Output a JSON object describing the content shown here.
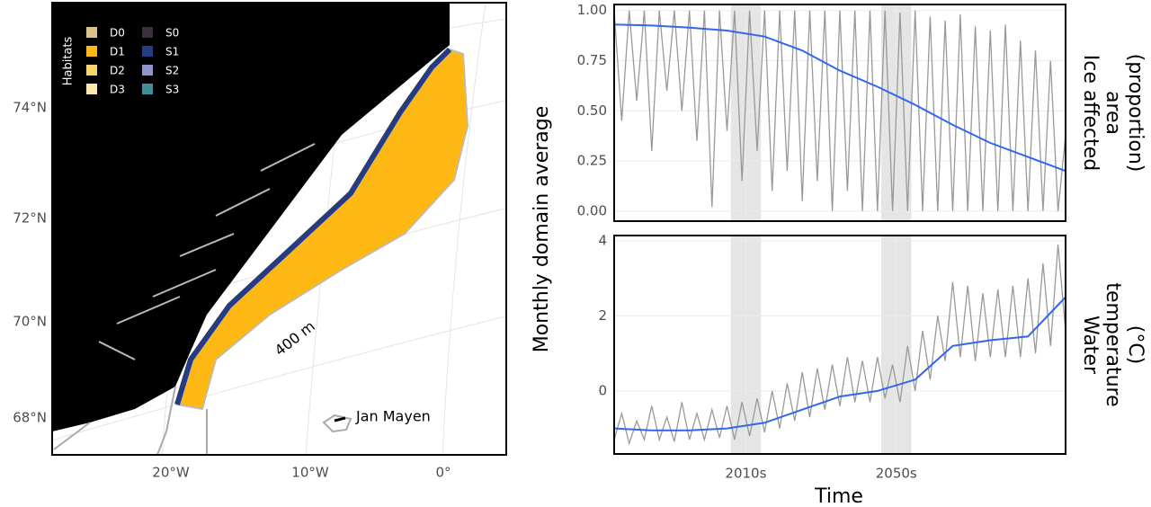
{
  "map": {
    "lat_labels": [
      "74°N",
      "72°N",
      "70°N",
      "68°N"
    ],
    "lon_labels": [
      "20°W",
      "10°W",
      "0°"
    ],
    "legend_title": "Habitats",
    "legend": [
      {
        "name": "D0",
        "color": "#d9c28a"
      },
      {
        "name": "D1",
        "color": "#fdb814"
      },
      {
        "name": "D2",
        "color": "#f9d56e"
      },
      {
        "name": "D3",
        "color": "#fbe8b0"
      },
      {
        "name": "S0",
        "color": "#3c2f3d"
      },
      {
        "name": "S1",
        "color": "#273c80"
      },
      {
        "name": "S2",
        "color": "#8e95c9"
      },
      {
        "name": "S3",
        "color": "#3f8f9a"
      }
    ],
    "annotations": [
      "400 m",
      "Jan Mayen"
    ]
  },
  "chart_data": [
    {
      "type": "line",
      "ylabel": "Monthly domain average",
      "strip": [
        "Ice affected",
        "area",
        "(proportion)"
      ],
      "xlim": [
        1980,
        2100
      ],
      "xticks": [
        {
          "value": 2015,
          "label": "2010s"
        },
        {
          "value": 2055,
          "label": "2050s"
        }
      ],
      "ylim": [
        -0.05,
        1.03
      ],
      "yticks": [
        {
          "value": 0,
          "label": "0.00"
        },
        {
          "value": 0.25,
          "label": "0.25"
        },
        {
          "value": 0.5,
          "label": "0.50"
        },
        {
          "value": 0.75,
          "label": "0.75"
        },
        {
          "value": 1,
          "label": "1.00"
        }
      ],
      "bands": [
        [
          2011,
          2019
        ],
        [
          2051,
          2059
        ]
      ],
      "grid": true,
      "series": [
        {
          "color": "#999999",
          "x": [
            1980,
            1982,
            1984,
            1986,
            1988,
            1990,
            1992,
            1994,
            1996,
            1998,
            2000,
            2002,
            2004,
            2006,
            2008,
            2010,
            2012,
            2014,
            2016,
            2018,
            2020,
            2022,
            2024,
            2026,
            2028,
            2030,
            2032,
            2034,
            2036,
            2038,
            2040,
            2042,
            2044,
            2046,
            2048,
            2050,
            2052,
            2054,
            2056,
            2058,
            2060,
            2062,
            2064,
            2066,
            2068,
            2070,
            2072,
            2074,
            2076,
            2078,
            2080,
            2082,
            2084,
            2086,
            2088,
            2090,
            2092,
            2094,
            2096,
            2098,
            2100
          ],
          "values": [
            1.0,
            0.45,
            1.0,
            0.55,
            1.0,
            0.3,
            1.0,
            0.6,
            1.0,
            0.5,
            1.0,
            0.35,
            1.0,
            0.02,
            1.0,
            0.4,
            1.0,
            0.15,
            1.0,
            0.3,
            1.0,
            0.1,
            1.0,
            0.2,
            1.0,
            0.05,
            1.0,
            0.15,
            1.0,
            0.0,
            1.0,
            0.1,
            1.0,
            0.0,
            1.0,
            0.0,
            1.0,
            0.0,
            0.99,
            0.0,
            1.0,
            0.0,
            0.97,
            0.0,
            0.95,
            0.0,
            0.98,
            0.0,
            0.92,
            0.0,
            0.9,
            0.0,
            0.93,
            0.0,
            0.85,
            0.0,
            0.8,
            0.0,
            0.75,
            0.0,
            0.38
          ]
        },
        {
          "color": "#3366ee",
          "x": [
            1980,
            1990,
            2000,
            2010,
            2020,
            2030,
            2040,
            2050,
            2060,
            2070,
            2080,
            2090,
            2100
          ],
          "values": [
            0.93,
            0.925,
            0.915,
            0.9,
            0.87,
            0.8,
            0.7,
            0.62,
            0.53,
            0.43,
            0.34,
            0.27,
            0.2
          ]
        }
      ]
    },
    {
      "type": "line",
      "xlabel": "Time",
      "strip": [
        "Water",
        "temperature",
        "(°C)"
      ],
      "xlim": [
        1980,
        2100
      ],
      "xticks": [
        {
          "value": 2015,
          "label": "2010s"
        },
        {
          "value": 2055,
          "label": "2050s"
        }
      ],
      "ylim": [
        -1.68,
        4.14
      ],
      "yticks": [
        0,
        2,
        4
      ],
      "bands": [
        [
          2011,
          2019
        ],
        [
          2051,
          2059
        ]
      ],
      "grid": true,
      "series": [
        {
          "color": "#999999",
          "x": [
            1980,
            1982,
            1984,
            1986,
            1988,
            1990,
            1992,
            1994,
            1996,
            1998,
            2000,
            2002,
            2004,
            2006,
            2008,
            2010,
            2012,
            2014,
            2016,
            2018,
            2020,
            2022,
            2024,
            2026,
            2028,
            2030,
            2032,
            2034,
            2036,
            2038,
            2040,
            2042,
            2044,
            2046,
            2048,
            2050,
            2052,
            2054,
            2056,
            2058,
            2060,
            2062,
            2064,
            2066,
            2068,
            2070,
            2072,
            2074,
            2076,
            2078,
            2080,
            2082,
            2084,
            2086,
            2088,
            2090,
            2092,
            2094,
            2096,
            2098,
            2100
          ],
          "values": [
            -1.3,
            -0.6,
            -1.4,
            -0.8,
            -1.3,
            -0.4,
            -1.3,
            -0.7,
            -1.35,
            -0.3,
            -1.3,
            -0.6,
            -1.3,
            -0.5,
            -1.25,
            -0.4,
            -1.3,
            -0.3,
            -1.2,
            -0.2,
            -1.1,
            0.0,
            -1.0,
            0.2,
            -0.8,
            0.5,
            -0.7,
            0.6,
            -0.5,
            0.7,
            -0.4,
            0.9,
            -0.3,
            0.8,
            -0.3,
            0.9,
            -0.2,
            0.7,
            -0.3,
            1.2,
            0.0,
            1.6,
            0.3,
            2.0,
            0.8,
            2.9,
            0.9,
            2.8,
            0.8,
            2.6,
            0.9,
            2.7,
            0.9,
            2.8,
            0.9,
            3.0,
            1.0,
            3.4,
            1.2,
            3.9,
            1.6
          ]
        },
        {
          "color": "#3366ee",
          "x": [
            1980,
            1990,
            2000,
            2010,
            2020,
            2030,
            2040,
            2050,
            2060,
            2070,
            2080,
            2090,
            2100
          ],
          "values": [
            -1.0,
            -1.05,
            -1.05,
            -1.0,
            -0.85,
            -0.5,
            -0.15,
            0.0,
            0.3,
            1.2,
            1.35,
            1.45,
            2.5
          ]
        }
      ]
    }
  ]
}
